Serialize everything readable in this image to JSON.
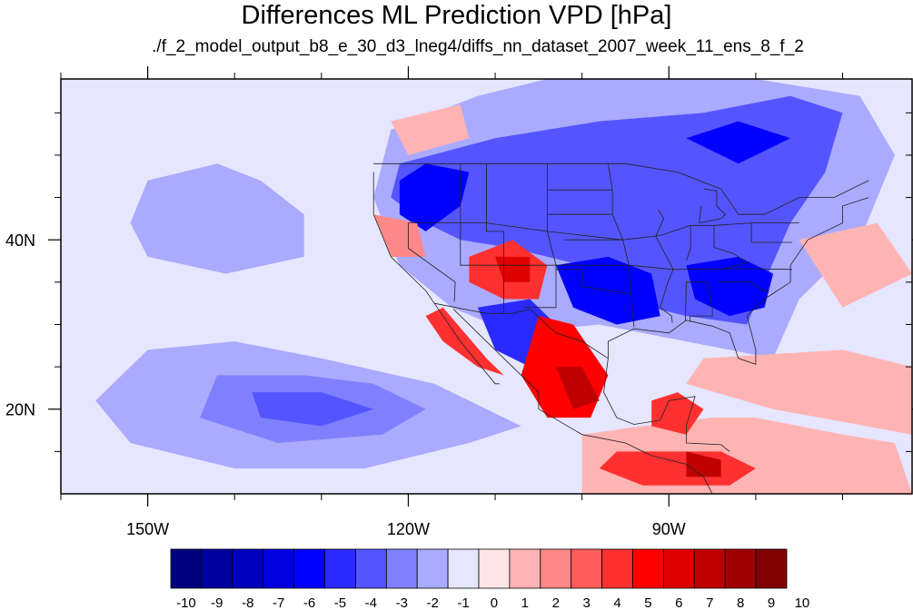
{
  "title": "Differences ML Prediction VPD [hPa]",
  "subtitle": "./f_2_model_output_b8_e_30_d3_lneg4/diffs_nn_dataset_2007_week_11_ens_8_f_2",
  "map": {
    "lon_range": [
      -160,
      -62
    ],
    "lat_range": [
      10,
      59
    ],
    "lon_ticks": [
      {
        "value": -150,
        "label": "150W"
      },
      {
        "value": -120,
        "label": "120W"
      },
      {
        "value": -90,
        "label": "90W"
      }
    ],
    "lat_ticks": [
      {
        "value": 40,
        "label": "40N"
      },
      {
        "value": 20,
        "label": "20N"
      }
    ],
    "background_value": -1
  },
  "colorbar": {
    "colors": [
      "#00007f",
      "#00009f",
      "#0000bf",
      "#0000df",
      "#0000ff",
      "#2a2aff",
      "#5555ff",
      "#8080ff",
      "#aaaaff",
      "#e6e6ff",
      "#ffe6e6",
      "#ffb4b4",
      "#ff8888",
      "#ff5c5c",
      "#ff3030",
      "#ff0000",
      "#df0000",
      "#bf0000",
      "#9f0000",
      "#7f0000"
    ],
    "labels": [
      "-10",
      "-9",
      "-8",
      "-7",
      "-6",
      "-5",
      "-4",
      "-3",
      "-2",
      "-1",
      "0",
      "1",
      "2",
      "3",
      "4",
      "5",
      "6",
      "7",
      "8",
      "9",
      "10"
    ]
  },
  "chart_data": {
    "type": "heatmap",
    "title": "Differences ML Prediction VPD [hPa]",
    "subtitle": "./f_2_model_output_b8_e_30_d3_lneg4/diffs_nn_dataset_2007_week_11_ens_8_f_2",
    "x_range": [
      -160,
      -62
    ],
    "y_range": [
      10,
      59
    ],
    "x_tick_labels": [
      "150W",
      "120W",
      "90W"
    ],
    "y_tick_labels": [
      "40N",
      "20N"
    ],
    "value_range": [
      -10,
      10
    ],
    "regions": [
      {
        "value": -2,
        "polygon": [
          [
            -150,
            47
          ],
          [
            -142,
            49
          ],
          [
            -137,
            47
          ],
          [
            -132,
            43
          ],
          [
            -132,
            38
          ],
          [
            -141,
            36
          ],
          [
            -150,
            38
          ],
          [
            -152,
            42
          ]
        ]
      },
      {
        "value": -2,
        "polygon": [
          [
            -150,
            27
          ],
          [
            -140,
            28
          ],
          [
            -130,
            26
          ],
          [
            -117,
            23
          ],
          [
            -107,
            18
          ],
          [
            -113,
            16
          ],
          [
            -125,
            13
          ],
          [
            -140,
            13
          ],
          [
            -152,
            16
          ],
          [
            -156,
            21
          ]
        ]
      },
      {
        "value": -3,
        "polygon": [
          [
            -142,
            24
          ],
          [
            -132,
            24
          ],
          [
            -124,
            23
          ],
          [
            -118,
            20
          ],
          [
            -123,
            17
          ],
          [
            -135,
            16
          ],
          [
            -144,
            19
          ]
        ]
      },
      {
        "value": -4,
        "polygon": [
          [
            -138,
            22
          ],
          [
            -130,
            22
          ],
          [
            -124,
            20
          ],
          [
            -130,
            18
          ],
          [
            -137,
            19
          ]
        ]
      },
      {
        "value": -2,
        "polygon": [
          [
            -104,
            59
          ],
          [
            -80,
            59
          ],
          [
            -68,
            57
          ],
          [
            -64,
            50
          ],
          [
            -68,
            40
          ],
          [
            -75,
            33
          ],
          [
            -78,
            26
          ],
          [
            -88,
            28
          ],
          [
            -98,
            30
          ],
          [
            -108,
            29
          ],
          [
            -115,
            32
          ],
          [
            -121,
            37
          ],
          [
            -124,
            45
          ],
          [
            -122,
            53
          ],
          [
            -112,
            57
          ]
        ]
      },
      {
        "value": -4,
        "polygon": [
          [
            -121,
            49
          ],
          [
            -110,
            52
          ],
          [
            -98,
            54
          ],
          [
            -86,
            55
          ],
          [
            -76,
            57
          ],
          [
            -70,
            55
          ],
          [
            -72,
            48
          ],
          [
            -76,
            42
          ],
          [
            -79,
            35
          ],
          [
            -81,
            30
          ],
          [
            -88,
            31
          ],
          [
            -96,
            33
          ],
          [
            -100,
            37
          ],
          [
            -108,
            39
          ],
          [
            -114,
            40
          ],
          [
            -118,
            42
          ],
          [
            -122,
            45
          ]
        ]
      },
      {
        "value": -6,
        "polygon": [
          [
            -118,
            49
          ],
          [
            -113,
            48
          ],
          [
            -114,
            44
          ],
          [
            -118,
            41
          ],
          [
            -121,
            43
          ],
          [
            -121,
            47
          ]
        ]
      },
      {
        "value": -6,
        "polygon": [
          [
            -103,
            37
          ],
          [
            -97,
            38
          ],
          [
            -92,
            36
          ],
          [
            -91,
            31
          ],
          [
            -96,
            30
          ],
          [
            -101,
            32
          ]
        ]
      },
      {
        "value": -6,
        "polygon": [
          [
            -88,
            37
          ],
          [
            -82,
            38
          ],
          [
            -78,
            36
          ],
          [
            -79,
            32
          ],
          [
            -83,
            31
          ],
          [
            -87,
            33
          ]
        ]
      },
      {
        "value": -6,
        "polygon": [
          [
            -88,
            52
          ],
          [
            -82,
            54
          ],
          [
            -76,
            52
          ],
          [
            -82,
            49
          ]
        ]
      },
      {
        "value": -5,
        "polygon": [
          [
            -112,
            32
          ],
          [
            -106,
            33
          ],
          [
            -103,
            30
          ],
          [
            -106,
            25
          ],
          [
            -110,
            27
          ]
        ]
      },
      {
        "value": 4,
        "polygon": [
          [
            -113,
            38
          ],
          [
            -108,
            40
          ],
          [
            -104,
            37
          ],
          [
            -105,
            33
          ],
          [
            -109,
            33
          ],
          [
            -113,
            35
          ]
        ]
      },
      {
        "value": 6,
        "polygon": [
          [
            -110,
            38
          ],
          [
            -106,
            38
          ],
          [
            -106,
            35
          ],
          [
            -109,
            35
          ]
        ]
      },
      {
        "value": 4,
        "polygon": [
          [
            -118,
            31
          ],
          [
            -116,
            32
          ],
          [
            -111,
            26
          ],
          [
            -109,
            24
          ],
          [
            -112,
            25
          ],
          [
            -116,
            28
          ]
        ]
      },
      {
        "value": 5,
        "polygon": [
          [
            -105,
            31
          ],
          [
            -101,
            30
          ],
          [
            -97,
            24
          ],
          [
            -99,
            19
          ],
          [
            -104,
            19
          ],
          [
            -107,
            24
          ]
        ]
      },
      {
        "value": 7,
        "polygon": [
          [
            -103,
            25
          ],
          [
            -100,
            25
          ],
          [
            -98,
            21
          ],
          [
            -101,
            20
          ]
        ]
      },
      {
        "value": 1,
        "polygon": [
          [
            -100,
            17
          ],
          [
            -93,
            18
          ],
          [
            -85,
            19
          ],
          [
            -80,
            19
          ],
          [
            -70,
            17
          ],
          [
            -64,
            16
          ],
          [
            -62,
            10
          ],
          [
            -100,
            10
          ]
        ]
      },
      {
        "value": 4,
        "polygon": [
          [
            -92,
            21
          ],
          [
            -89,
            22
          ],
          [
            -86,
            20
          ],
          [
            -88,
            17
          ],
          [
            -92,
            18
          ]
        ]
      },
      {
        "value": 4,
        "polygon": [
          [
            -96,
            15
          ],
          [
            -84,
            15
          ],
          [
            -80,
            13
          ],
          [
            -83,
            11
          ],
          [
            -93,
            11
          ],
          [
            -98,
            13
          ]
        ]
      },
      {
        "value": 7,
        "polygon": [
          [
            -88,
            15
          ],
          [
            -84,
            14
          ],
          [
            -84,
            12
          ],
          [
            -88,
            12
          ]
        ]
      },
      {
        "value": 1,
        "polygon": [
          [
            -86,
            26
          ],
          [
            -70,
            27
          ],
          [
            -62,
            25
          ],
          [
            -62,
            17
          ],
          [
            -78,
            20
          ],
          [
            -88,
            23
          ]
        ]
      },
      {
        "value": 1,
        "polygon": [
          [
            -75,
            40
          ],
          [
            -66,
            42
          ],
          [
            -62,
            36
          ],
          [
            -70,
            32
          ]
        ]
      },
      {
        "value": 2,
        "polygon": [
          [
            -124,
            43
          ],
          [
            -119,
            42
          ],
          [
            -118,
            38
          ],
          [
            -122,
            38
          ]
        ]
      },
      {
        "value": 1,
        "polygon": [
          [
            -122,
            54
          ],
          [
            -114,
            56
          ],
          [
            -113,
            52
          ],
          [
            -120,
            50
          ]
        ]
      }
    ]
  }
}
